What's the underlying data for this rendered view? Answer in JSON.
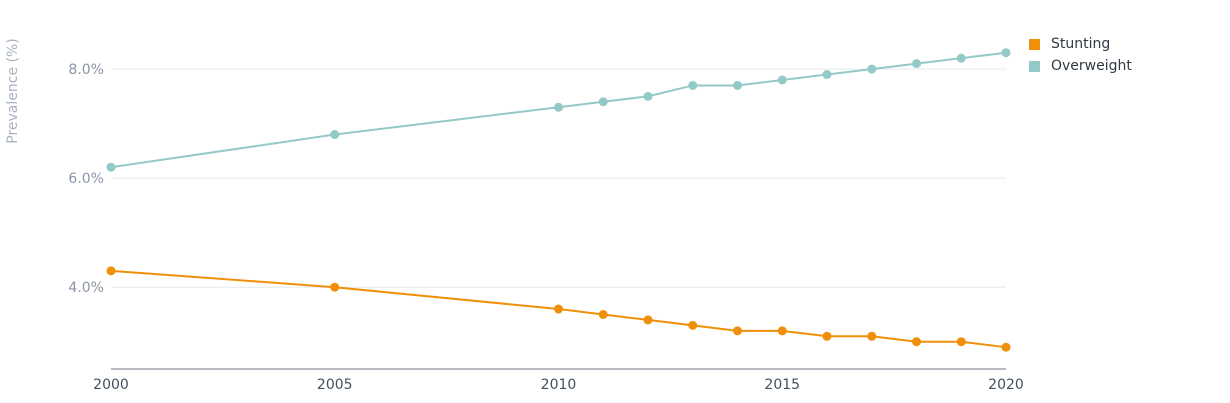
{
  "chart_data": {
    "type": "line",
    "ylabel": "Prevalence (%)",
    "x": [
      2000,
      2005,
      2010,
      2011,
      2012,
      2013,
      2014,
      2015,
      2016,
      2017,
      2018,
      2019,
      2020
    ],
    "xticks": [
      "2000",
      "2005",
      "2010",
      "2015",
      "2020"
    ],
    "yticks": [
      "4.0%",
      "6.0%",
      "8.0%"
    ],
    "ylim": [
      2.5,
      8.9
    ],
    "xlim": [
      2000,
      2020
    ],
    "grid": true,
    "legend_position": "top-right",
    "series": [
      {
        "name": "Stunting",
        "color": "#f0900a",
        "values": [
          4.3,
          4.0,
          3.6,
          3.5,
          3.4,
          3.3,
          3.2,
          3.2,
          3.1,
          3.1,
          3.0,
          3.0,
          2.9
        ]
      },
      {
        "name": "Overweight",
        "color": "#93c9c7",
        "values": [
          6.2,
          6.8,
          7.3,
          7.4,
          7.5,
          7.7,
          7.7,
          7.8,
          7.9,
          8.0,
          8.1,
          8.2,
          8.3
        ]
      }
    ]
  }
}
